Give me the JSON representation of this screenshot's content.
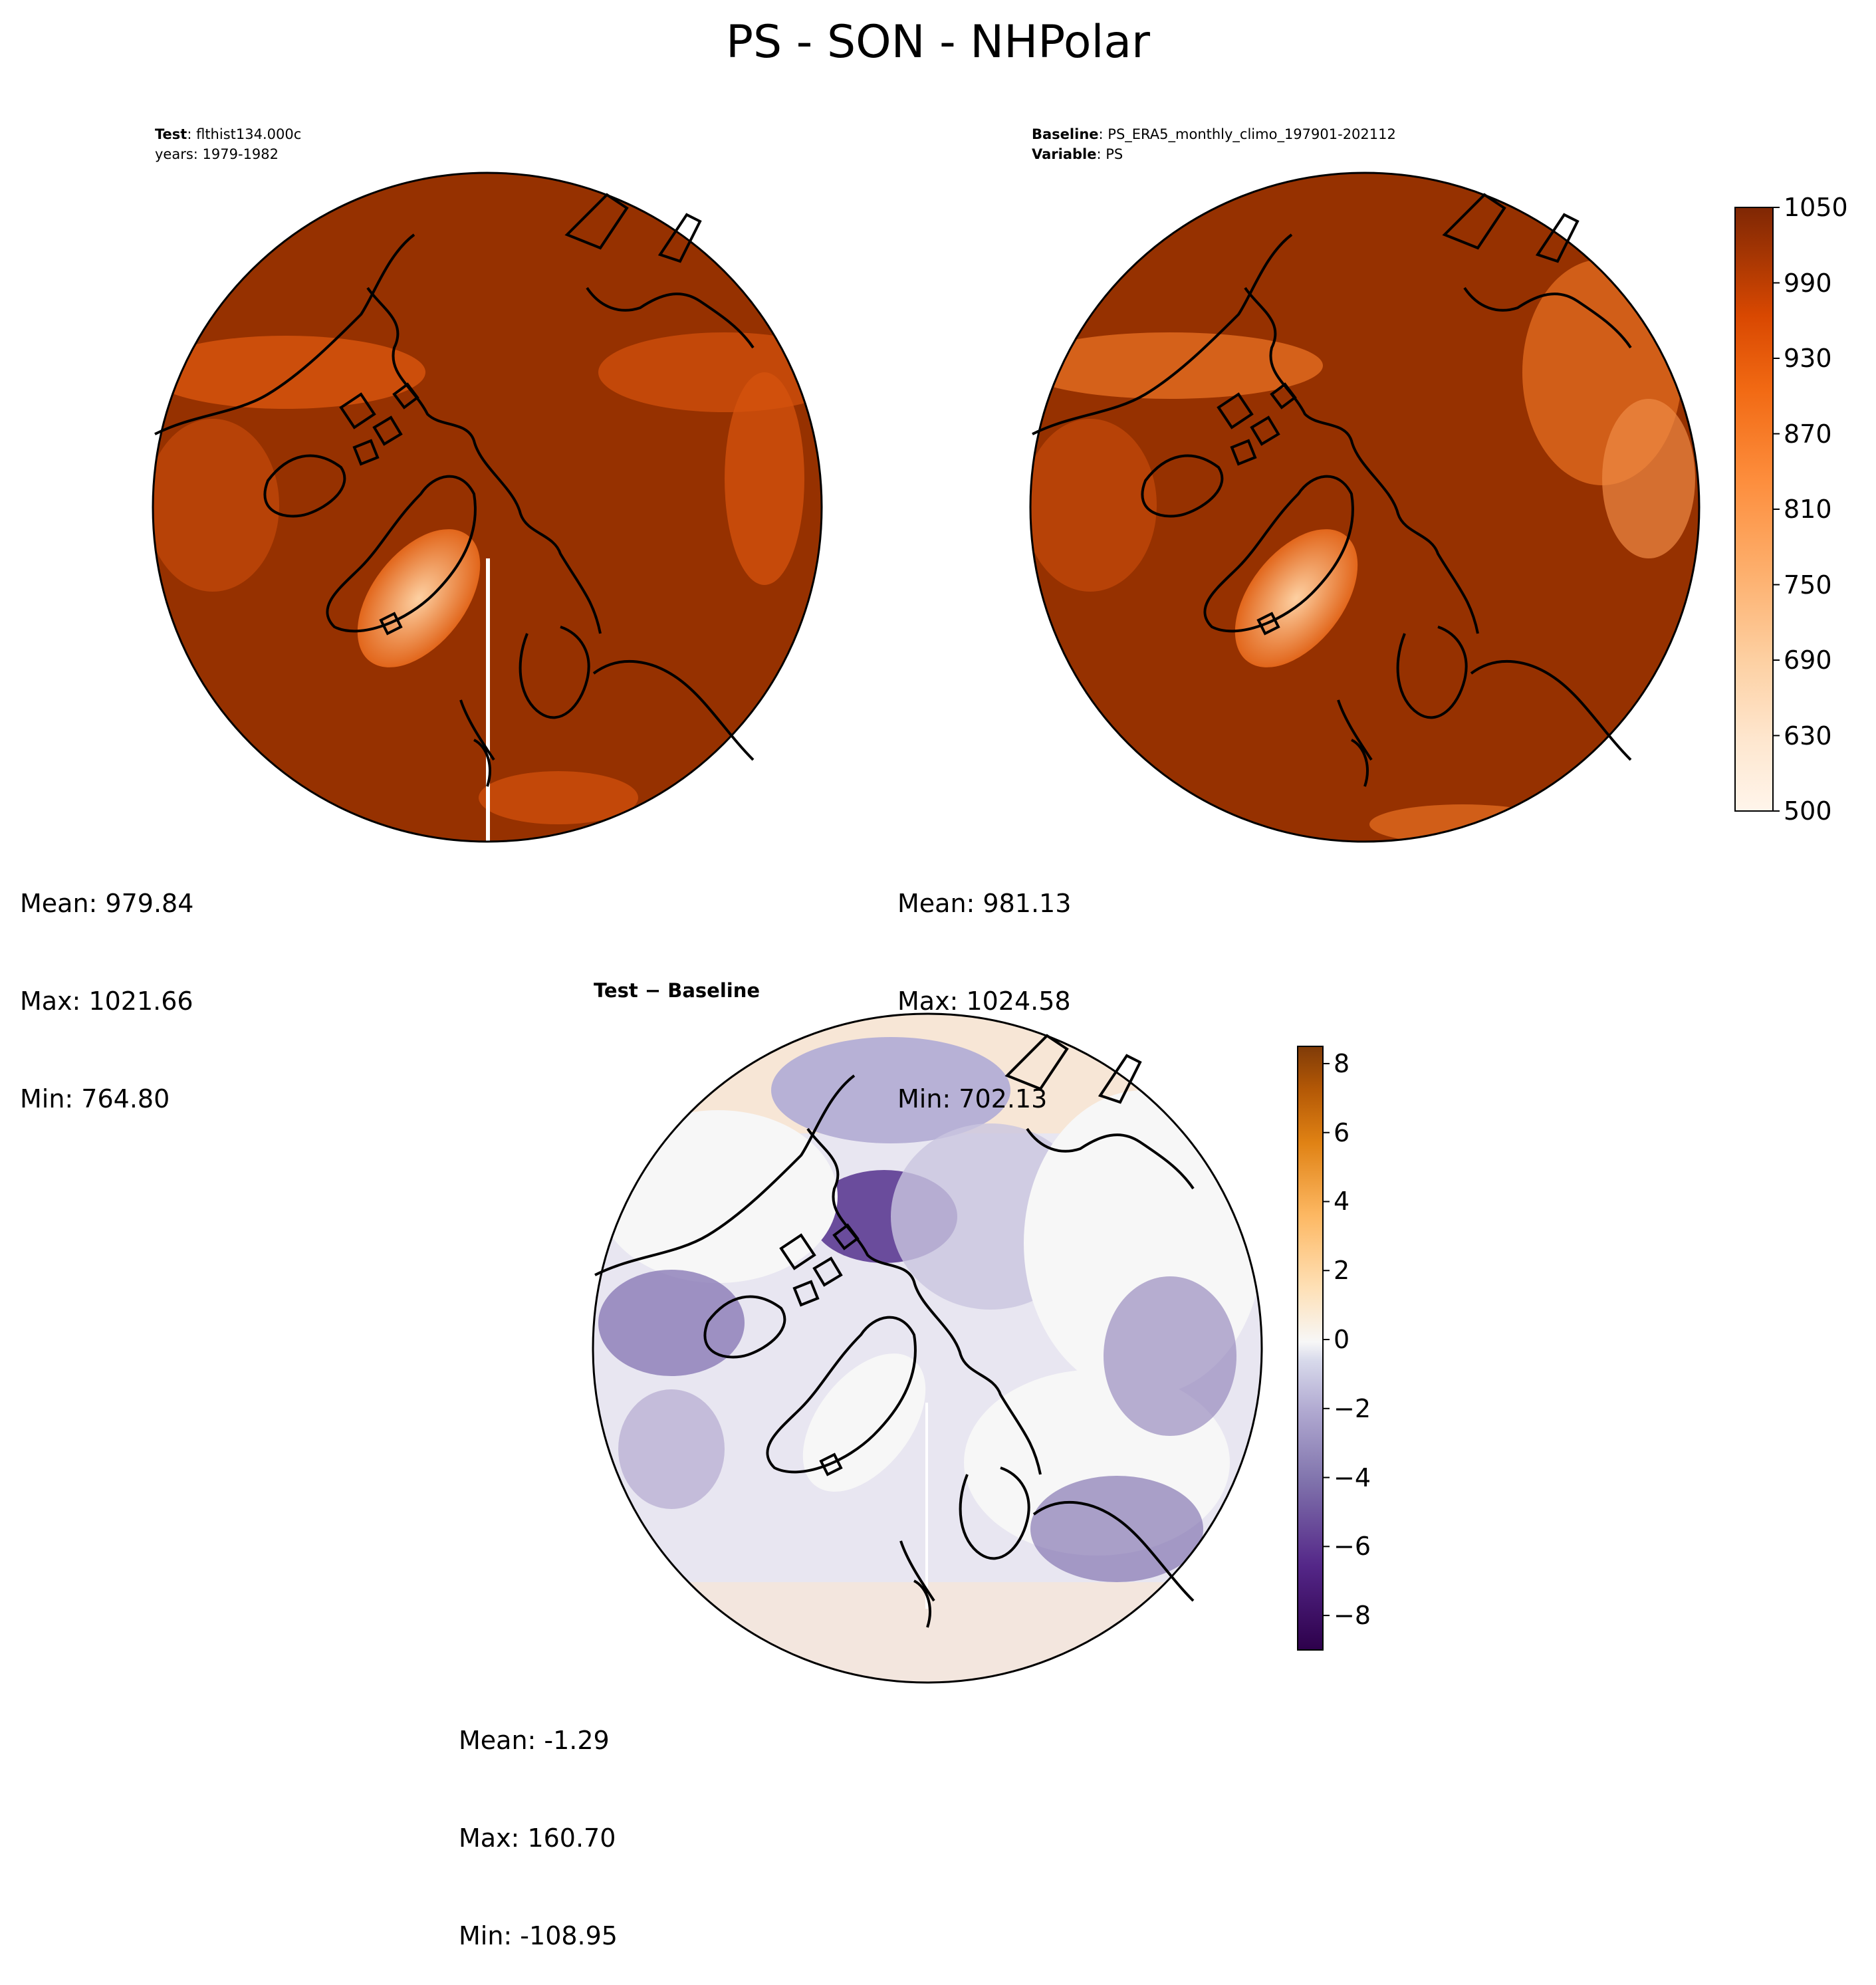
{
  "title": "PS - SON - NHPolar",
  "panels": {
    "test": {
      "label_bold": "Test",
      "label_sep": ": ",
      "label_text": "flthist134.000c",
      "line2": "years: 1979-1982",
      "stats": {
        "mean": "Mean: 979.84",
        "max": "Max: 1021.66",
        "min": "Min: 764.80"
      }
    },
    "baseline": {
      "label_bold": "Baseline",
      "label_sep": ": ",
      "label_text": "PS_ERA5_monthly_climo_197901-202112",
      "line2_bold": "Variable",
      "line2_sep": ": ",
      "line2_text": "PS",
      "stats": {
        "mean": "Mean: 981.13",
        "max": "Max: 1024.58",
        "min": "Min: 702.13"
      }
    },
    "diff": {
      "label_bold": "Test",
      "label_sep": " − ",
      "label_text": "Baseline",
      "stats": {
        "mean": "Mean: -1.29",
        "max": "Max: 160.70",
        "min": "Min: -108.95"
      }
    }
  },
  "colors": {
    "field_high": "#963100",
    "field_mid": "#d6530d",
    "field_low": "#fdae6b",
    "diff_neg": "#54278f",
    "diff_zero": "#f7f7f7",
    "diff_pos": "#b35806"
  },
  "chart_data": [
    {
      "type": "heatmap",
      "title": "Test: flthist134.000c",
      "projection": "north-polar-stereographic",
      "variable": "PS",
      "stats": {
        "mean": 979.84,
        "max": 1021.66,
        "min": 764.8
      },
      "colorbar": {
        "range": [
          500,
          1050
        ],
        "ticks": [
          500,
          630,
          690,
          750,
          810,
          870,
          930,
          990,
          1050
        ],
        "colormap": "Oranges",
        "shared_with": "baseline"
      }
    },
    {
      "type": "heatmap",
      "title": "Baseline: PS_ERA5_monthly_climo_197901-202112",
      "projection": "north-polar-stereographic",
      "variable": "PS",
      "stats": {
        "mean": 981.13,
        "max": 1024.58,
        "min": 702.13
      },
      "colorbar": {
        "range": [
          500,
          1050
        ],
        "ticks": [
          500,
          630,
          690,
          750,
          810,
          870,
          930,
          990,
          1050
        ],
        "colormap": "Oranges"
      }
    },
    {
      "type": "heatmap",
      "title": "Test − Baseline",
      "projection": "north-polar-stereographic",
      "variable": "PS",
      "stats": {
        "mean": -1.29,
        "max": 160.7,
        "min": -108.95
      },
      "colorbar": {
        "range": [
          -9,
          8.5
        ],
        "ticks": [
          -8,
          -6,
          -4,
          -2,
          0,
          2,
          4,
          6,
          8
        ],
        "tick_labels": [
          "−8",
          "−6",
          "−4",
          "−2",
          "0",
          "2",
          "4",
          "6",
          "8"
        ],
        "colormap": "PuOr_r"
      }
    }
  ]
}
